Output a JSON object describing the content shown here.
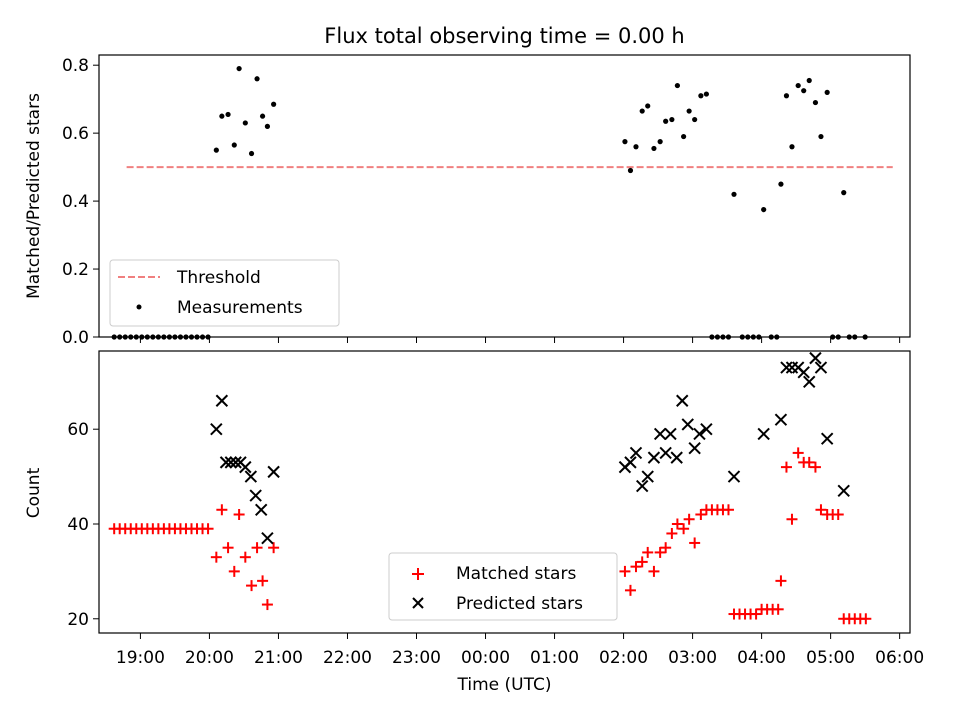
{
  "title": "Flux total observing time = 0.00 h",
  "colors": {
    "threshold": "#f08080",
    "measurements": "#000000",
    "matched": "#ff0000",
    "predicted": "#000000"
  },
  "chart_data": [
    {
      "type": "scatter",
      "panel": "top",
      "ylabel": "Matched/Predicted stars",
      "xlabel": "",
      "ylim": [
        0,
        0.83
      ],
      "yticks": [
        "0.0",
        "0.2",
        "0.4",
        "0.6",
        "0.8"
      ],
      "xlim": [
        18.4,
        30.15
      ],
      "legend_placement": "lower-left",
      "threshold": {
        "name": "Threshold",
        "value": 0.5,
        "x_range": [
          18.8,
          29.9
        ]
      },
      "series": [
        {
          "name": "Measurements",
          "marker": "dot",
          "points": [
            [
              18.62,
              0
            ],
            [
              18.7,
              0
            ],
            [
              18.78,
              0
            ],
            [
              18.86,
              0
            ],
            [
              18.94,
              0
            ],
            [
              19.02,
              0
            ],
            [
              19.1,
              0
            ],
            [
              19.18,
              0
            ],
            [
              19.26,
              0
            ],
            [
              19.34,
              0
            ],
            [
              19.42,
              0
            ],
            [
              19.5,
              0
            ],
            [
              19.58,
              0
            ],
            [
              19.66,
              0
            ],
            [
              19.74,
              0
            ],
            [
              19.82,
              0
            ],
            [
              19.9,
              0
            ],
            [
              19.98,
              0
            ],
            [
              20.1,
              0.55
            ],
            [
              20.18,
              0.65
            ],
            [
              20.27,
              0.655
            ],
            [
              20.36,
              0.565
            ],
            [
              20.43,
              0.79
            ],
            [
              20.52,
              0.63
            ],
            [
              20.61,
              0.54
            ],
            [
              20.69,
              0.76
            ],
            [
              20.77,
              0.65
            ],
            [
              20.84,
              0.62
            ],
            [
              20.93,
              0.685
            ],
            [
              26.02,
              0.575
            ],
            [
              26.1,
              0.49
            ],
            [
              26.18,
              0.56
            ],
            [
              26.27,
              0.665
            ],
            [
              26.35,
              0.68
            ],
            [
              26.44,
              0.555
            ],
            [
              26.53,
              0.575
            ],
            [
              26.61,
              0.635
            ],
            [
              26.7,
              0.64
            ],
            [
              26.78,
              0.74
            ],
            [
              26.87,
              0.59
            ],
            [
              26.95,
              0.665
            ],
            [
              27.03,
              0.64
            ],
            [
              27.12,
              0.71
            ],
            [
              27.2,
              0.715
            ],
            [
              27.28,
              0
            ],
            [
              27.36,
              0
            ],
            [
              27.44,
              0
            ],
            [
              27.52,
              0
            ],
            [
              27.6,
              0.42
            ],
            [
              27.72,
              0
            ],
            [
              27.8,
              0
            ],
            [
              27.88,
              0
            ],
            [
              27.96,
              0
            ],
            [
              28.14,
              0
            ],
            [
              28.22,
              0
            ],
            [
              28.03,
              0.375
            ],
            [
              28.28,
              0.45
            ],
            [
              28.36,
              0.71
            ],
            [
              28.44,
              0.56
            ],
            [
              28.53,
              0.74
            ],
            [
              28.61,
              0.725
            ],
            [
              28.69,
              0.755
            ],
            [
              28.78,
              0.69
            ],
            [
              28.86,
              0.59
            ],
            [
              28.95,
              0.72
            ],
            [
              29.03,
              0
            ],
            [
              29.11,
              0
            ],
            [
              29.19,
              0.425
            ],
            [
              29.27,
              0
            ],
            [
              29.35,
              0
            ],
            [
              29.5,
              0
            ]
          ]
        }
      ]
    },
    {
      "type": "scatter",
      "panel": "bottom",
      "ylabel": "Count",
      "xlabel": "Time (UTC)",
      "ylim": [
        17,
        76.5
      ],
      "yticks": [
        "20",
        "40",
        "60"
      ],
      "xlim": [
        18.4,
        30.15
      ],
      "xticks": [
        "19:00",
        "20:00",
        "21:00",
        "22:00",
        "23:00",
        "00:00",
        "01:00",
        "02:00",
        "03:00",
        "04:00",
        "05:00",
        "06:00"
      ],
      "legend_placement": "lower-center",
      "series": [
        {
          "name": "Matched stars",
          "marker": "plus",
          "points": [
            [
              18.62,
              39
            ],
            [
              18.7,
              39
            ],
            [
              18.78,
              39
            ],
            [
              18.86,
              39
            ],
            [
              18.94,
              39
            ],
            [
              19.02,
              39
            ],
            [
              19.1,
              39
            ],
            [
              19.18,
              39
            ],
            [
              19.26,
              39
            ],
            [
              19.34,
              39
            ],
            [
              19.42,
              39
            ],
            [
              19.5,
              39
            ],
            [
              19.58,
              39
            ],
            [
              19.66,
              39
            ],
            [
              19.74,
              39
            ],
            [
              19.82,
              39
            ],
            [
              19.9,
              39
            ],
            [
              19.98,
              39
            ],
            [
              20.1,
              33
            ],
            [
              20.18,
              43
            ],
            [
              20.27,
              35
            ],
            [
              20.36,
              30
            ],
            [
              20.43,
              42
            ],
            [
              20.52,
              33
            ],
            [
              20.61,
              27
            ],
            [
              20.69,
              35
            ],
            [
              20.77,
              28
            ],
            [
              20.84,
              23
            ],
            [
              20.93,
              35
            ],
            [
              26.02,
              30
            ],
            [
              26.1,
              26
            ],
            [
              26.18,
              31
            ],
            [
              26.27,
              32
            ],
            [
              26.35,
              34
            ],
            [
              26.44,
              30
            ],
            [
              26.53,
              34
            ],
            [
              26.61,
              35
            ],
            [
              26.7,
              38
            ],
            [
              26.78,
              40
            ],
            [
              26.87,
              39
            ],
            [
              26.95,
              41
            ],
            [
              27.03,
              36
            ],
            [
              27.12,
              42
            ],
            [
              27.2,
              43
            ],
            [
              27.28,
              43
            ],
            [
              27.36,
              43
            ],
            [
              27.44,
              43
            ],
            [
              27.52,
              43
            ],
            [
              27.6,
              21
            ],
            [
              27.68,
              21
            ],
            [
              27.76,
              21
            ],
            [
              27.84,
              21
            ],
            [
              27.92,
              21
            ],
            [
              28.0,
              22
            ],
            [
              28.08,
              22
            ],
            [
              28.16,
              22
            ],
            [
              28.24,
              22
            ],
            [
              28.28,
              28
            ],
            [
              28.36,
              52
            ],
            [
              28.44,
              41
            ],
            [
              28.53,
              55
            ],
            [
              28.61,
              53
            ],
            [
              28.69,
              53
            ],
            [
              28.78,
              52
            ],
            [
              28.86,
              43
            ],
            [
              28.95,
              42
            ],
            [
              29.03,
              42
            ],
            [
              29.11,
              42
            ],
            [
              29.19,
              20
            ],
            [
              29.27,
              20
            ],
            [
              29.35,
              20
            ],
            [
              29.43,
              20
            ],
            [
              29.51,
              20
            ]
          ]
        },
        {
          "name": "Predicted stars",
          "marker": "x",
          "points": [
            [
              20.1,
              60
            ],
            [
              20.18,
              66
            ],
            [
              20.24,
              53
            ],
            [
              20.31,
              53
            ],
            [
              20.38,
              53
            ],
            [
              20.45,
              53
            ],
            [
              20.52,
              52
            ],
            [
              20.6,
              50
            ],
            [
              20.67,
              46
            ],
            [
              20.75,
              43
            ],
            [
              20.84,
              37
            ],
            [
              20.93,
              51
            ],
            [
              26.02,
              52
            ],
            [
              26.1,
              53
            ],
            [
              26.18,
              55
            ],
            [
              26.27,
              48
            ],
            [
              26.35,
              50
            ],
            [
              26.44,
              54
            ],
            [
              26.53,
              59
            ],
            [
              26.61,
              55
            ],
            [
              26.68,
              59
            ],
            [
              26.77,
              54
            ],
            [
              26.85,
              66
            ],
            [
              26.93,
              61
            ],
            [
              27.03,
              56
            ],
            [
              27.1,
              59
            ],
            [
              27.2,
              60
            ],
            [
              27.6,
              50
            ],
            [
              28.03,
              59
            ],
            [
              28.28,
              62
            ],
            [
              28.36,
              73
            ],
            [
              28.44,
              73
            ],
            [
              28.53,
              73
            ],
            [
              28.61,
              72
            ],
            [
              28.69,
              70
            ],
            [
              28.78,
              75
            ],
            [
              28.86,
              73
            ],
            [
              28.95,
              58
            ],
            [
              29.19,
              47
            ]
          ]
        }
      ]
    }
  ]
}
